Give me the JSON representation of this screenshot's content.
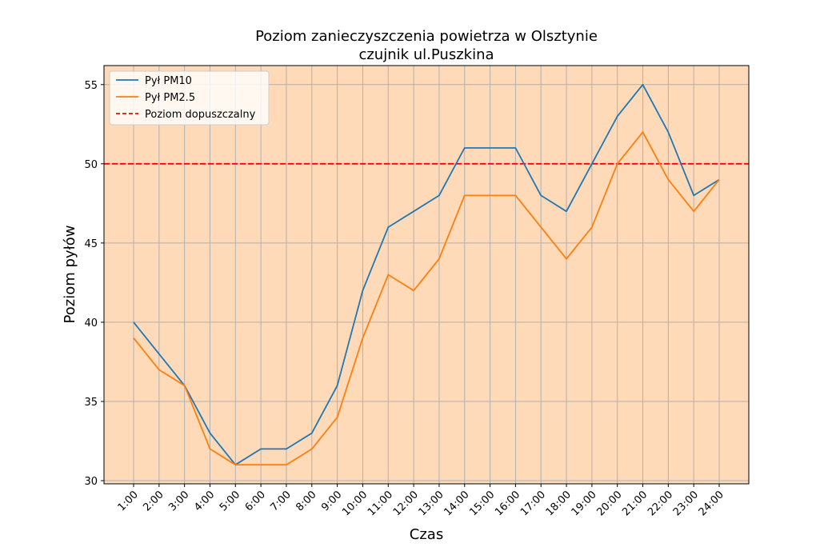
{
  "chart_data": {
    "type": "line",
    "title": "Poziom zanieczyszczenia powietrza w Olsztynie",
    "subtitle": "czujnik ul.Puszkina",
    "xlabel": "Czas",
    "ylabel": "Poziom pyłów",
    "categories": [
      "1:00",
      "2:00",
      "3:00",
      "4:00",
      "5:00",
      "6:00",
      "7:00",
      "8:00",
      "9:00",
      "10:00",
      "11:00",
      "12:00",
      "13:00",
      "14:00",
      "15:00",
      "16:00",
      "17:00",
      "18:00",
      "19:00",
      "20:00",
      "21:00",
      "22:00",
      "23:00",
      "24:00"
    ],
    "series": [
      {
        "name": "Pył PM10",
        "color": "#1f77b4",
        "values": [
          40,
          38,
          36,
          33,
          31,
          32,
          32,
          33,
          36,
          42,
          46,
          47,
          48,
          51,
          51,
          51,
          48,
          47,
          50,
          53,
          55,
          52,
          48,
          49
        ]
      },
      {
        "name": "Pył PM2.5",
        "color": "#ff7f0e",
        "values": [
          39,
          37,
          36,
          32,
          31,
          31,
          31,
          32,
          34,
          39,
          43,
          42,
          44,
          48,
          48,
          48,
          46,
          44,
          46,
          50,
          52,
          49,
          47,
          49
        ]
      }
    ],
    "reference_line": {
      "name": "Poziom dopuszczalny",
      "value": 50,
      "color": "#ff0000",
      "style": "dashed"
    },
    "ylim": [
      29.8,
      56.2
    ],
    "yticks": [
      30,
      35,
      40,
      45,
      50,
      55
    ],
    "grid": true,
    "legend_position": "top-left",
    "plot_background": "#ffdab9"
  }
}
